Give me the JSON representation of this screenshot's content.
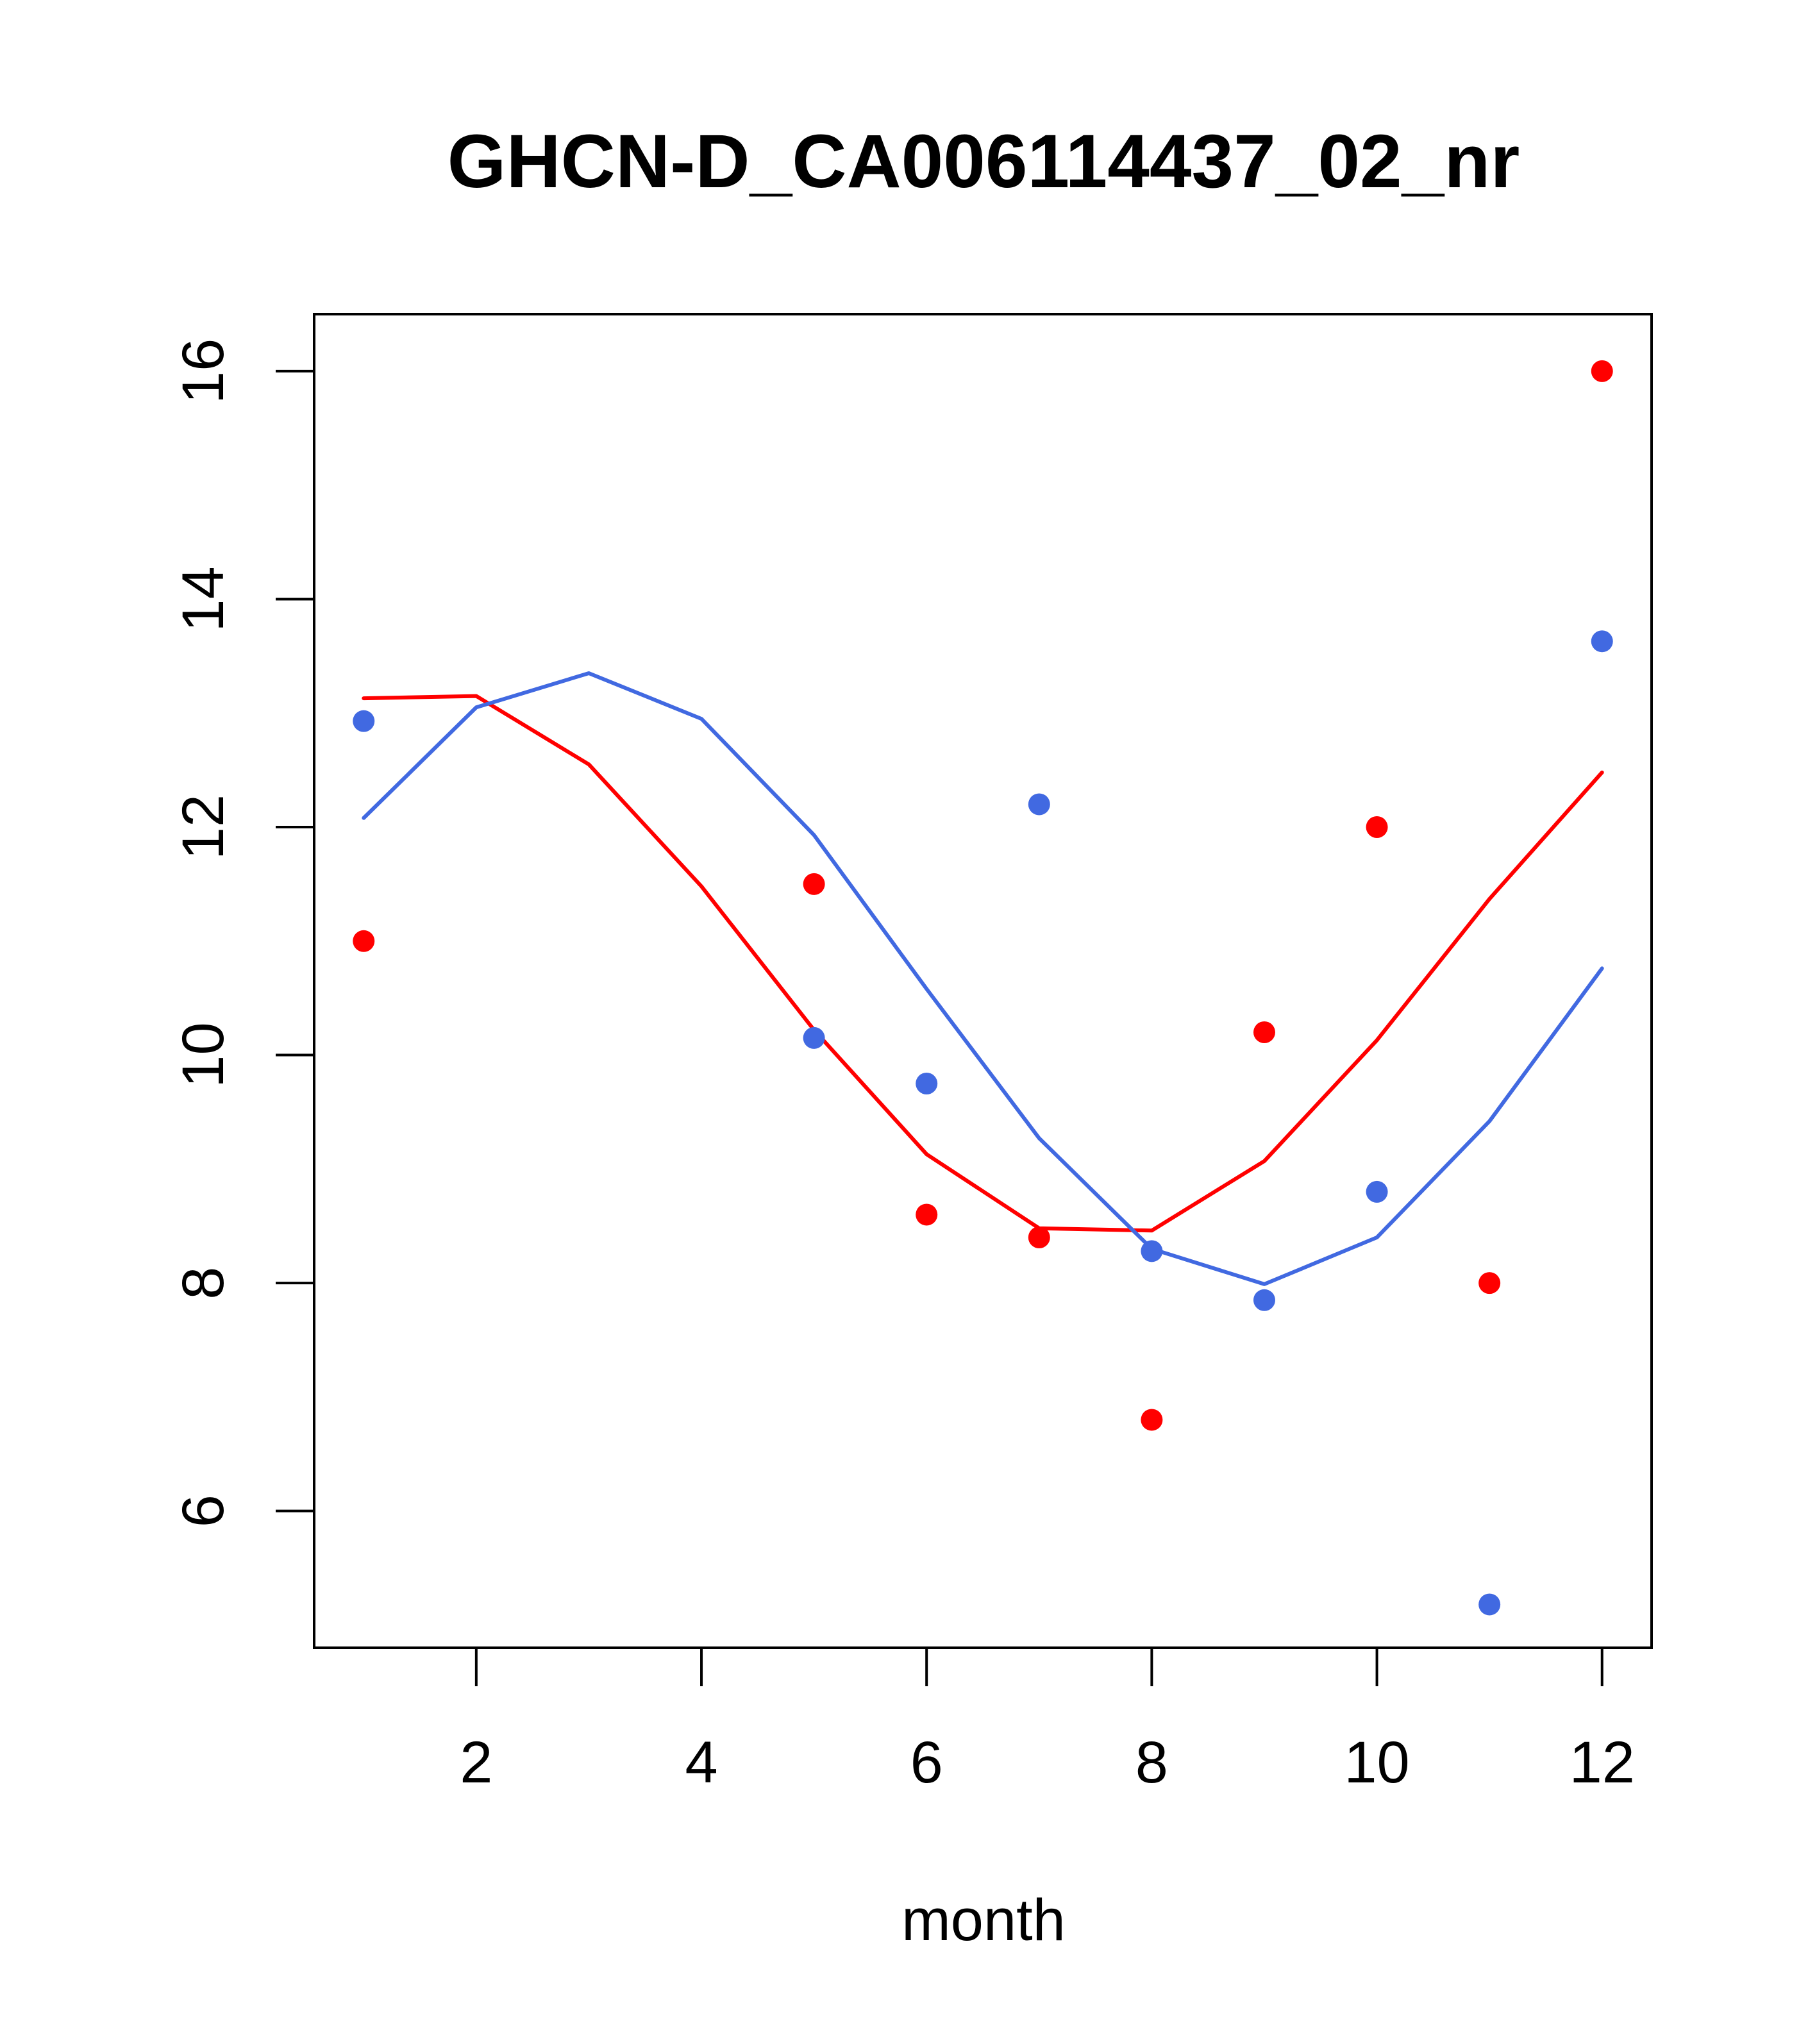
{
  "chart_data": {
    "type": "scatter",
    "title": "GHCN-D_CA006114437_02_nr",
    "xlabel": "month",
    "ylabel": "",
    "xlim": [
      0.56,
      12.44
    ],
    "ylim": [
      4.8,
      16.5
    ],
    "xticks": [
      2,
      4,
      6,
      8,
      10,
      12
    ],
    "yticks": [
      6,
      8,
      10,
      12,
      14,
      16
    ],
    "grid": false,
    "legend": "none",
    "points": [
      {
        "color": "#ff0000",
        "x": [
          1,
          5,
          6,
          7,
          8,
          9,
          10,
          11,
          12
        ],
        "y": [
          11.0,
          11.5,
          8.6,
          8.4,
          6.8,
          10.2,
          12.0,
          8.0,
          16.0
        ]
      },
      {
        "color": "#4169e1",
        "x": [
          1,
          5,
          6,
          7,
          8,
          9,
          10,
          11,
          12
        ],
        "y": [
          12.93,
          10.15,
          9.75,
          12.2,
          8.28,
          7.85,
          8.8,
          5.18,
          13.63
        ]
      }
    ],
    "lines": [
      {
        "color": "#ff0000",
        "x": [
          1,
          2,
          3,
          4,
          5,
          6,
          7,
          8,
          9,
          10,
          11,
          12
        ],
        "y": [
          13.13,
          13.15,
          12.55,
          11.48,
          10.22,
          9.13,
          8.48,
          8.46,
          9.07,
          10.13,
          11.37,
          12.48
        ]
      },
      {
        "color": "#4169e1",
        "x": [
          1,
          2,
          3,
          4,
          5,
          6,
          7,
          8,
          9,
          10,
          11,
          12
        ],
        "y": [
          12.08,
          13.05,
          13.35,
          12.95,
          11.93,
          10.58,
          9.27,
          8.3,
          7.99,
          8.4,
          9.42,
          10.76
        ]
      }
    ]
  }
}
